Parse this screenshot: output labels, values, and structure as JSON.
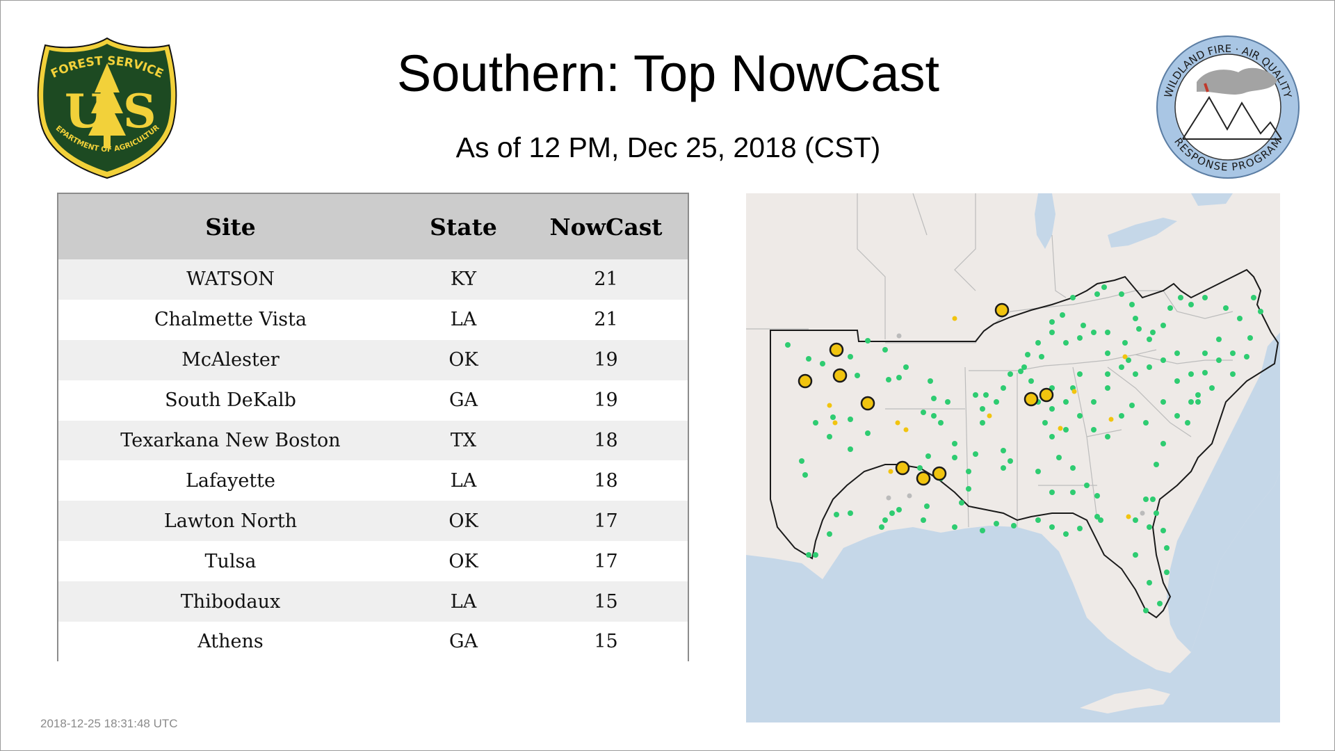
{
  "header": {
    "title": "Southern: Top NowCast",
    "subtitle": "As of 12 PM, Dec 25, 2018 (CST)"
  },
  "logos": {
    "usfs": {
      "top_text": "FOREST SERVICE",
      "bottom_text": "DEPARTMENT OF AGRICULTURE",
      "letter_left": "U",
      "letter_right": "S"
    },
    "wildland": {
      "top_text": "WILDLAND FIRE · AIR QUALITY",
      "bottom_text": "RESPONSE PROGRAM"
    }
  },
  "table": {
    "columns": [
      "Site",
      "State",
      "NowCast"
    ],
    "rows": [
      [
        "WATSON",
        "KY",
        "21"
      ],
      [
        "Chalmette Vista",
        "LA",
        "21"
      ],
      [
        "McAlester",
        "OK",
        "19"
      ],
      [
        "South DeKalb",
        "GA",
        "19"
      ],
      [
        "Texarkana New Boston",
        "TX",
        "18"
      ],
      [
        "Lafayette",
        "LA",
        "18"
      ],
      [
        "Lawton North",
        "OK",
        "17"
      ],
      [
        "Tulsa",
        "OK",
        "17"
      ],
      [
        "Thibodaux",
        "LA",
        "15"
      ],
      [
        "Athens",
        "GA",
        "15"
      ]
    ]
  },
  "map": {
    "colors": {
      "land": "#eeeae7",
      "water": "#c5d7e8",
      "good": "#2ecc71",
      "moderate": "#f1c40f",
      "nodata": "#bbbbbb",
      "outline": "#1a1a1a"
    },
    "marker_categories": [
      "good",
      "moderate",
      "nodata",
      "top-site"
    ]
  },
  "footer": {
    "timestamp": "2018-12-25 18:31:48 UTC"
  }
}
